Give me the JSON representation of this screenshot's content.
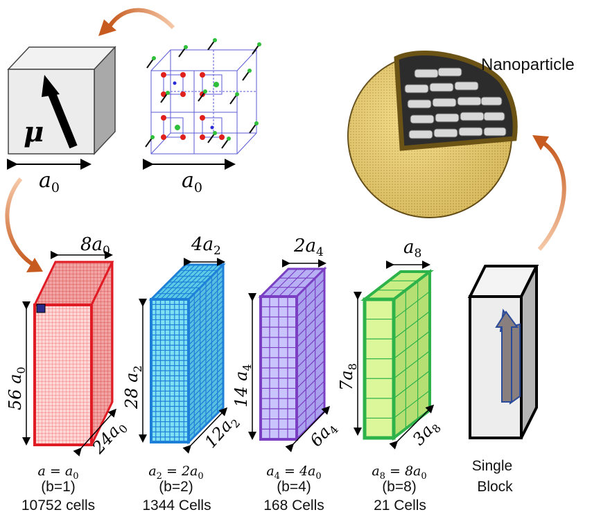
{
  "top": {
    "moment_symbol": "μ",
    "lattice_constant": "a",
    "lattice_subscript": "0",
    "nanoparticle_label": "Nanoparticle"
  },
  "blocks": [
    {
      "id": "b1",
      "top_dim": "8a",
      "top_sub": "0",
      "side_dim": "56 a",
      "side_sub": "0",
      "depth_dim": "24a",
      "depth_sub": "0",
      "size_expr": "a = a",
      "size_sub": "0",
      "b_label": "(b=1)",
      "cells": "10752 cells",
      "color": "#e01b24"
    },
    {
      "id": "b2",
      "top_dim": "4a",
      "top_sub": "2",
      "side_dim": "28 a",
      "side_sub": "2",
      "depth_dim": "12a",
      "depth_sub": "2",
      "size_expr_left": "a",
      "size_expr_left_sub": "2",
      "size_expr_right": " = 2a",
      "size_sub": "0",
      "b_label": "(b=2)",
      "cells": "1344 Cells",
      "color": "#1e7fd8"
    },
    {
      "id": "b4",
      "top_dim": "2a",
      "top_sub": "4",
      "side_dim": "14 a",
      "side_sub": "4",
      "depth_dim": "6a",
      "depth_sub": "4",
      "size_expr_left": "a",
      "size_expr_left_sub": "4",
      "size_expr_right": " = 4a",
      "size_sub": "0",
      "b_label": "(b=4)",
      "cells": "168 Cells",
      "color": "#7b3fc4"
    },
    {
      "id": "b8",
      "top_dim": "a",
      "top_sub": "8",
      "side_dim": "7a",
      "side_sub": "8",
      "depth_dim": "3a",
      "depth_sub": "8",
      "size_expr_left": "a",
      "size_expr_left_sub": "8",
      "size_expr_right": " = 8a",
      "size_sub": "0",
      "b_label": "(b=8)",
      "cells": "21 Cells",
      "color": "#2db34a"
    }
  ],
  "single_block": {
    "line1": "Single",
    "line2": "Block"
  },
  "colors": {
    "arrow_orange": "#e07a3c",
    "red": "#e01b24",
    "blue": "#1e7fd8",
    "purple": "#7b3fc4",
    "green": "#2db34a",
    "particle_yellow": "#e8c860"
  }
}
